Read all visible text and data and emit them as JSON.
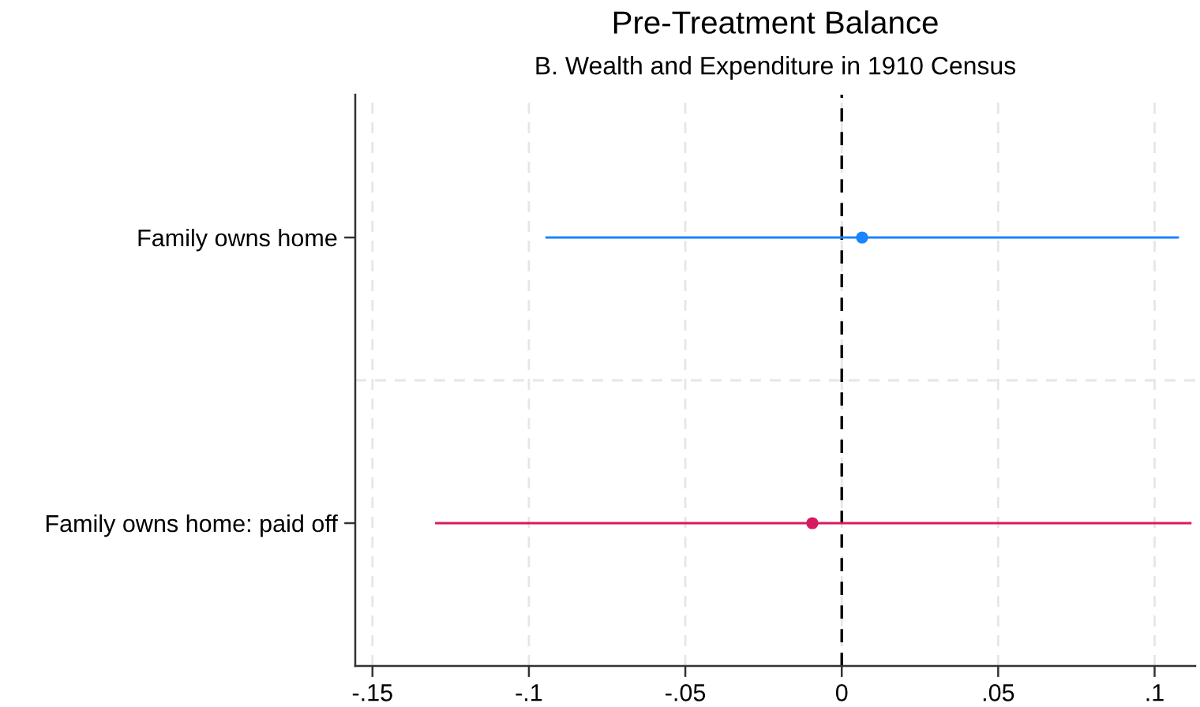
{
  "chart_data": {
    "type": "scatter",
    "orientation": "horizontal",
    "title": "Pre-Treatment Balance",
    "subtitle": "B. Wealth and Expenditure in 1910 Census",
    "categories": [
      "Family owns home",
      "Family owns home: paid off"
    ],
    "values": [
      0.0065,
      -0.0094
    ],
    "colors": [
      "#1a85ff",
      "#d81b60"
    ],
    "errors": [
      [
        -0.0947,
        0.1078
      ],
      [
        -0.13,
        0.1118
      ]
    ],
    "xlim": [
      -0.1555,
      0.113
    ],
    "xticks": [
      {
        "value": -0.15,
        "label": "-.15"
      },
      {
        "value": -0.1,
        "label": "-.1"
      },
      {
        "value": -0.05,
        "label": "-.05"
      },
      0,
      {
        "value": 0.05,
        "label": ".05"
      },
      {
        "value": 0.1,
        "label": ".1"
      }
    ],
    "ref_lines": [
      {
        "axis": "x",
        "value": 0,
        "color": "#000000",
        "line_style": "dashed"
      }
    ],
    "grid": true,
    "marker": "circle",
    "legend": false
  }
}
